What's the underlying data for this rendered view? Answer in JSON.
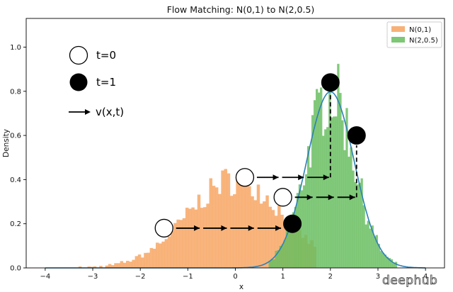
{
  "chart_data": {
    "type": "histogram",
    "title": "Flow Matching: N(0,1) to N(2,0.5)",
    "xlabel": "x",
    "ylabel": "Density",
    "xlim": [
      -4.4,
      4.4
    ],
    "ylim": [
      0,
      1.13
    ],
    "x_ticks": [
      "−4",
      "−3",
      "−2",
      "−1",
      "0",
      "1",
      "2",
      "3",
      "4"
    ],
    "y_ticks": [
      "0.0",
      "0.2",
      "0.4",
      "0.6",
      "0.8",
      "1.0"
    ],
    "legend_position": "top-right",
    "series": [
      {
        "name": "N(0,1)",
        "color": "#f6a35f",
        "kind": "histogram",
        "mean": 0,
        "std": 1,
        "range": [
          -3.3,
          1.7
        ],
        "bins": 80
      },
      {
        "name": "N(2,0.5)",
        "color": "#67bd5e",
        "kind": "histogram",
        "mean": 2,
        "std": 0.5,
        "range": [
          0.7,
          3.4
        ],
        "bins": 60
      },
      {
        "name": "",
        "color": "#2f80b6",
        "kind": "line",
        "description": "density of N(2,0.5)",
        "x_range": [
          -4,
          4
        ]
      }
    ],
    "annotations": {
      "start_label": "t=0",
      "end_label": "t=1",
      "vector_label": "v(x,t)",
      "start_points": [
        {
          "x": -1.5,
          "y": 0.18
        },
        {
          "x": 0.2,
          "y": 0.41
        },
        {
          "x": 1.0,
          "y": 0.32
        }
      ],
      "end_points": [
        {
          "x": 1.2,
          "y": 0.2
        },
        {
          "x": 2.0,
          "y": 0.84
        },
        {
          "x": 2.55,
          "y": 0.6
        }
      ]
    },
    "watermark": "deephub"
  }
}
